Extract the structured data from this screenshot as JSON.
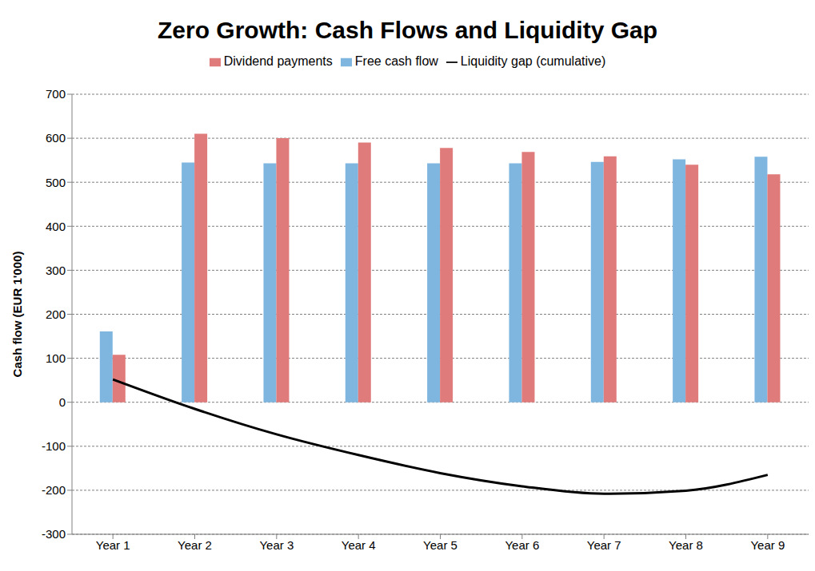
{
  "chart_data": {
    "type": "bar",
    "title": "Zero Growth: Cash Flows and Liquidity Gap",
    "y_label": "Cash flow (EUR 1'000)",
    "categories": [
      "Year 1",
      "Year 2",
      "Year 3",
      "Year 4",
      "Year 5",
      "Year 6",
      "Year 7",
      "Year 8",
      "Year 9"
    ],
    "series": [
      {
        "name": "Free cash flow",
        "type": "bar",
        "color": "#7EB6DF",
        "values": [
          161,
          545,
          543,
          543,
          543,
          543,
          546,
          552,
          558
        ]
      },
      {
        "name": "Dividend payments",
        "type": "bar",
        "color": "#E07B7B",
        "values": [
          108,
          610,
          600,
          590,
          578,
          569,
          559,
          540,
          518
        ]
      },
      {
        "name": "Liquidity gap (cumulative)",
        "type": "line",
        "color": "#000000",
        "values": [
          52,
          -15,
          -73,
          -120,
          -161,
          -191,
          -208,
          -201,
          -165
        ]
      }
    ],
    "ylim": [
      -300,
      700
    ],
    "yticks": [
      -300,
      -200,
      -100,
      0,
      100,
      200,
      300,
      400,
      500,
      600,
      700
    ],
    "grid": true,
    "legend": "top"
  }
}
